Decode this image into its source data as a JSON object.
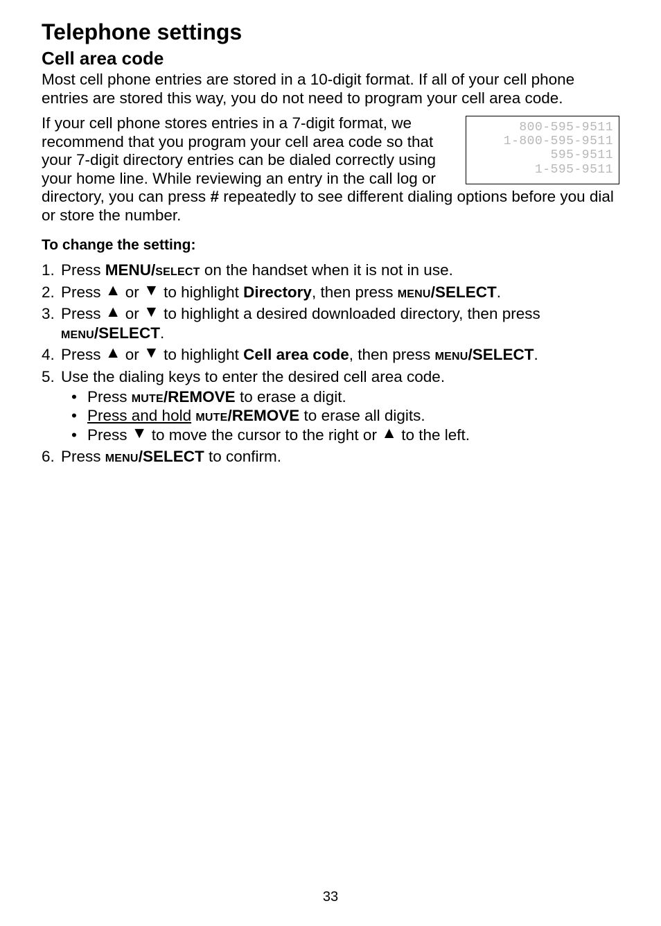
{
  "title": "Telephone settings",
  "subtitle": "Cell area code",
  "intro_para": "Most cell phone entries are stored in a 10-digit format. If all of your cell phone entries are stored this way, you do not need to program your cell area code.",
  "flow_para_1": "If your cell phone stores entries in a 7-digit format, we recommend that you program your cell area code so that your 7-digit directory entries can be dialed correctly using your home line. While reviewing an entry in the call log or directory, you can press ",
  "hash": "#",
  "flow_para_2": " repeatedly to see different dialing options before you dial or store the number.",
  "lcd": {
    "l1": "800-595-9511",
    "l2": "1-800-595-9511",
    "l3": "595-9511",
    "l4": "1-595-9511"
  },
  "change_heading": "To change the setting:",
  "steps": {
    "s1_a": "Press ",
    "s1_menu": "MENU/",
    "s1_select": "select",
    "s1_b": " on the handset when it is not in use.",
    "s2_a": "Press ",
    "s2_b": " or ",
    "s2_c": " to highlight ",
    "s2_dir": "Directory",
    "s2_d": ", then press ",
    "s2_menu": "menu",
    "s2_select": "/SELECT",
    "s2_e": ".",
    "s3_a": "Press ",
    "s3_b": " or ",
    "s3_c": " to highlight a desired downloaded directory, then press ",
    "s3_menu": "menu",
    "s3_select": "/SELECT",
    "s3_d": ".",
    "s4_a": "Press ",
    "s4_b": " or ",
    "s4_c": " to highlight ",
    "s4_cell": "Cell area code",
    "s4_d": ", then press ",
    "s4_menu": "menu",
    "s4_select": "/SELECT",
    "s4_e": ".",
    "s5_a": "Use the dialing keys to enter the desired cell area code.",
    "s5_b1_a": "Press ",
    "s5_b1_mute": "mute",
    "s5_b1_remove": "/REMOVE",
    "s5_b1_b": " to erase a digit.",
    "s5_b2_a": "Press and hold",
    "s5_b2_sp": " ",
    "s5_b2_mute": "mute",
    "s5_b2_remove": "/REMOVE",
    "s5_b2_b": " to erase all digits.",
    "s5_b3_a": "Press ",
    "s5_b3_b": " to move the cursor to the right or ",
    "s5_b3_c": " to the left.",
    "s6_a": "Press ",
    "s6_menu": "menu",
    "s6_select": "/SELECT",
    "s6_b": " to confirm."
  },
  "arrows": {
    "up": "▲",
    "down": "▼"
  },
  "nums": {
    "n1": "1.",
    "n2": "2.",
    "n3": "3.",
    "n4": "4.",
    "n5": "5.",
    "n6": "6."
  },
  "bullet": "•",
  "page": "33"
}
